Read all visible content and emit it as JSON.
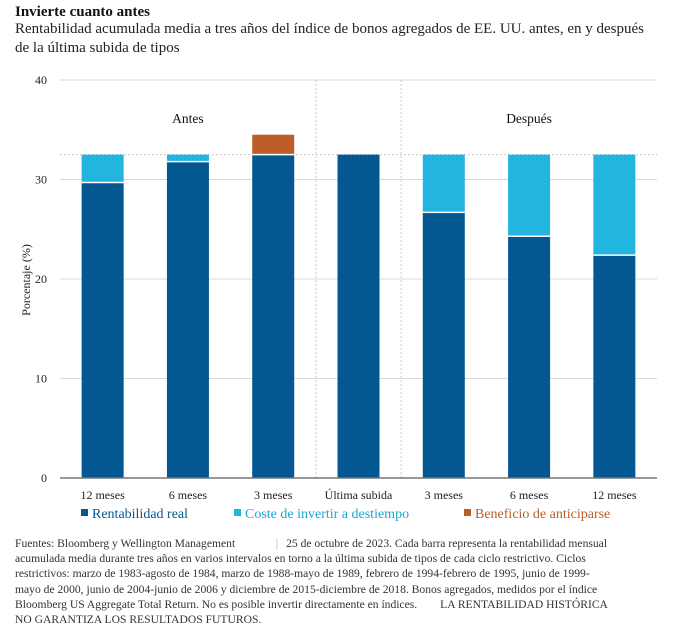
{
  "header": {
    "title": "Invierte cuanto antes",
    "subtitle": "Rentabilidad acumulada media a tres años del índice de bonos agregados de EE. UU. antes, en y después de la última subida de tipos"
  },
  "colors": {
    "real": "#035891",
    "coste": "#21B5E0",
    "beneficio": "#BD5E2A",
    "grid": "#d9d9d9",
    "axis": "#777777"
  },
  "chart_data": {
    "type": "bar",
    "stacked": true,
    "title": "Invierte cuanto antes",
    "subtitle": "Rentabilidad acumulada media a tres años del índice de bonos agregados de EE. UU. antes, en y después de la última subida de tipos",
    "xlabel": "",
    "ylabel": "Porcentaje (%)",
    "ylim": [
      0,
      40
    ],
    "yticks": [
      0,
      10,
      20,
      30,
      40
    ],
    "grid": true,
    "reference_line": 32.5,
    "categories": [
      "12 meses",
      "6 meses",
      "3 meses",
      "Última subida",
      "3 meses",
      "6 meses",
      "12 meses"
    ],
    "groups": [
      {
        "label": "Antes",
        "from": 0,
        "to": 2
      },
      {
        "label": "Después",
        "from": 4,
        "to": 6
      }
    ],
    "series": [
      {
        "name": "Rentabilidad real",
        "color_key": "real",
        "values": [
          29.7,
          31.8,
          32.5,
          32.5,
          26.7,
          24.3,
          22.4
        ]
      },
      {
        "name": "Coste de invertir a destiempo",
        "color_key": "coste",
        "values": [
          2.8,
          0.7,
          0,
          0,
          5.8,
          8.2,
          10.1
        ]
      },
      {
        "name": "Beneficio de anticiparse",
        "color_key": "beneficio",
        "values": [
          0,
          0,
          2.0,
          0,
          0,
          0,
          0
        ]
      }
    ],
    "legend": "bottom"
  },
  "legend": [
    {
      "label": "Rentabilidad real",
      "color_key": "real"
    },
    {
      "label": "Coste de invertir a destiempo",
      "color_key": "coste"
    },
    {
      "label": "Beneficio de anticiparse",
      "color_key": "beneficio"
    }
  ],
  "footnote": {
    "source": "Fuentes: Bloomberg y Wellington Management",
    "separator": "|",
    "body": "25 de octubre de 2023. Cada barra representa la rentabilidad mensual acumulada media durante tres años en varios intervalos en torno a la última subida de tipos de cada ciclo restrictivo. Ciclos restrictivos: marzo de 1983-agosto de 1984, marzo de 1988-mayo de 1989, febrero de 1994-febrero de 1995, junio de 1999-mayo de 2000, junio de 2004-junio de 2006 y diciembre de 2015-diciembre de 2018. Bonos agregados, medidos por el índice Bloomberg US Aggregate Total Return. No es posible invertir directamente en índices.",
    "disclaimer": "LA RENTABILIDAD HISTÓRICA NO GARANTIZA LOS RESULTADOS FUTUROS."
  }
}
